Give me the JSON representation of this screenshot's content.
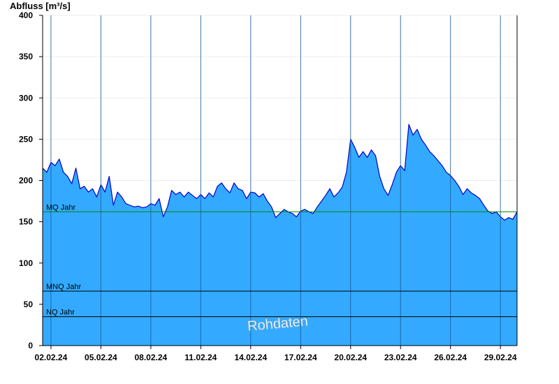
{
  "chart_data": {
    "type": "area",
    "title": "",
    "ylabel": "Abfluss [m³/s]",
    "xlabel": "",
    "ylim": [
      0,
      400
    ],
    "yticks": [
      0,
      50,
      100,
      150,
      200,
      250,
      300,
      350,
      400
    ],
    "x_range": [
      "2024-02-01T12:00",
      "2024-03-01T00:00"
    ],
    "xticks": [
      "02.02.24",
      "05.02.24",
      "08.02.24",
      "11.02.24",
      "14.02.24",
      "17.02.24",
      "20.02.24",
      "23.02.24",
      "26.02.24",
      "29.02.24"
    ],
    "xtick_dates": [
      "2024-02-02",
      "2024-02-05",
      "2024-02-08",
      "2024-02-11",
      "2024-02-14",
      "2024-02-17",
      "2024-02-20",
      "2024-02-23",
      "2024-02-26",
      "2024-02-29"
    ],
    "grid": "vertical lines at ticks",
    "series": [
      {
        "name": "",
        "color": "#0000cc",
        "fill": "#33aaff",
        "points": [
          [
            "2024-02-01T12:00",
            215
          ],
          [
            "2024-02-01T18:00",
            210
          ],
          [
            "2024-02-02T00:00",
            222
          ],
          [
            "2024-02-02T06:00",
            218
          ],
          [
            "2024-02-02T12:00",
            226
          ],
          [
            "2024-02-02T18:00",
            210
          ],
          [
            "2024-02-03T00:00",
            205
          ],
          [
            "2024-02-03T06:00",
            196
          ],
          [
            "2024-02-03T12:00",
            215
          ],
          [
            "2024-02-03T18:00",
            190
          ],
          [
            "2024-02-04T00:00",
            193
          ],
          [
            "2024-02-04T06:00",
            186
          ],
          [
            "2024-02-04T12:00",
            190
          ],
          [
            "2024-02-04T18:00",
            180
          ],
          [
            "2024-02-05T00:00",
            195
          ],
          [
            "2024-02-05T06:00",
            186
          ],
          [
            "2024-02-05T12:00",
            205
          ],
          [
            "2024-02-05T18:00",
            170
          ],
          [
            "2024-02-06T00:00",
            186
          ],
          [
            "2024-02-06T06:00",
            180
          ],
          [
            "2024-02-06T12:00",
            172
          ],
          [
            "2024-02-06T18:00",
            170
          ],
          [
            "2024-02-07T00:00",
            168
          ],
          [
            "2024-02-07T06:00",
            169
          ],
          [
            "2024-02-07T12:00",
            167
          ],
          [
            "2024-02-07T18:00",
            168
          ],
          [
            "2024-02-08T00:00",
            172
          ],
          [
            "2024-02-08T06:00",
            170
          ],
          [
            "2024-02-08T12:00",
            178
          ],
          [
            "2024-02-08T18:00",
            156
          ],
          [
            "2024-02-09T00:00",
            168
          ],
          [
            "2024-02-09T06:00",
            188
          ],
          [
            "2024-02-09T12:00",
            183
          ],
          [
            "2024-02-09T18:00",
            186
          ],
          [
            "2024-02-10T00:00",
            180
          ],
          [
            "2024-02-10T06:00",
            186
          ],
          [
            "2024-02-10T12:00",
            182
          ],
          [
            "2024-02-10T18:00",
            178
          ],
          [
            "2024-02-11T00:00",
            183
          ],
          [
            "2024-02-11T06:00",
            178
          ],
          [
            "2024-02-11T12:00",
            185
          ],
          [
            "2024-02-11T18:00",
            180
          ],
          [
            "2024-02-12T00:00",
            193
          ],
          [
            "2024-02-12T06:00",
            197
          ],
          [
            "2024-02-12T12:00",
            190
          ],
          [
            "2024-02-12T18:00",
            185
          ],
          [
            "2024-02-13T00:00",
            197
          ],
          [
            "2024-02-13T06:00",
            190
          ],
          [
            "2024-02-13T12:00",
            188
          ],
          [
            "2024-02-13T18:00",
            178
          ],
          [
            "2024-02-14T00:00",
            186
          ],
          [
            "2024-02-14T06:00",
            185
          ],
          [
            "2024-02-14T12:00",
            180
          ],
          [
            "2024-02-14T18:00",
            184
          ],
          [
            "2024-02-15T00:00",
            175
          ],
          [
            "2024-02-15T06:00",
            168
          ],
          [
            "2024-02-15T12:00",
            155
          ],
          [
            "2024-02-15T18:00",
            160
          ],
          [
            "2024-02-16T00:00",
            165
          ],
          [
            "2024-02-16T06:00",
            162
          ],
          [
            "2024-02-16T12:00",
            160
          ],
          [
            "2024-02-16T18:00",
            156
          ],
          [
            "2024-02-17T00:00",
            163
          ],
          [
            "2024-02-17T06:00",
            165
          ],
          [
            "2024-02-17T12:00",
            162
          ],
          [
            "2024-02-17T18:00",
            160
          ],
          [
            "2024-02-18T00:00",
            168
          ],
          [
            "2024-02-18T06:00",
            175
          ],
          [
            "2024-02-18T12:00",
            182
          ],
          [
            "2024-02-18T18:00",
            190
          ],
          [
            "2024-02-19T00:00",
            180
          ],
          [
            "2024-02-19T06:00",
            185
          ],
          [
            "2024-02-19T12:00",
            192
          ],
          [
            "2024-02-19T18:00",
            210
          ],
          [
            "2024-02-20T00:00",
            250
          ],
          [
            "2024-02-20T06:00",
            240
          ],
          [
            "2024-02-20T12:00",
            228
          ],
          [
            "2024-02-20T18:00",
            235
          ],
          [
            "2024-02-21T00:00",
            228
          ],
          [
            "2024-02-21T06:00",
            237
          ],
          [
            "2024-02-21T12:00",
            230
          ],
          [
            "2024-02-21T18:00",
            205
          ],
          [
            "2024-02-22T00:00",
            190
          ],
          [
            "2024-02-22T06:00",
            182
          ],
          [
            "2024-02-22T12:00",
            195
          ],
          [
            "2024-02-22T18:00",
            210
          ],
          [
            "2024-02-23T00:00",
            218
          ],
          [
            "2024-02-23T06:00",
            212
          ],
          [
            "2024-02-23T12:00",
            268
          ],
          [
            "2024-02-23T18:00",
            255
          ],
          [
            "2024-02-24T00:00",
            262
          ],
          [
            "2024-02-24T06:00",
            250
          ],
          [
            "2024-02-24T12:00",
            243
          ],
          [
            "2024-02-24T18:00",
            235
          ],
          [
            "2024-02-25T00:00",
            230
          ],
          [
            "2024-02-25T06:00",
            224
          ],
          [
            "2024-02-25T12:00",
            218
          ],
          [
            "2024-02-25T18:00",
            210
          ],
          [
            "2024-02-26T00:00",
            206
          ],
          [
            "2024-02-26T06:00",
            200
          ],
          [
            "2024-02-26T12:00",
            193
          ],
          [
            "2024-02-26T18:00",
            183
          ],
          [
            "2024-02-27T00:00",
            190
          ],
          [
            "2024-02-27T06:00",
            185
          ],
          [
            "2024-02-27T12:00",
            182
          ],
          [
            "2024-02-27T18:00",
            178
          ],
          [
            "2024-02-28T00:00",
            170
          ],
          [
            "2024-02-28T06:00",
            163
          ],
          [
            "2024-02-28T12:00",
            160
          ],
          [
            "2024-02-28T18:00",
            162
          ],
          [
            "2024-02-29T00:00",
            156
          ],
          [
            "2024-02-29T06:00",
            152
          ],
          [
            "2024-02-29T12:00",
            155
          ],
          [
            "2024-02-29T18:00",
            153
          ],
          [
            "2024-03-01T00:00",
            162
          ]
        ]
      }
    ],
    "reference_lines": [
      {
        "label": "MQ Jahr",
        "value": 162,
        "color": "#008800"
      },
      {
        "label": "MNQ Jahr",
        "value": 66,
        "color": "#000000"
      },
      {
        "label": "NQ Jahr",
        "value": 35,
        "color": "#000000"
      }
    ],
    "watermark": "Rohdaten"
  }
}
